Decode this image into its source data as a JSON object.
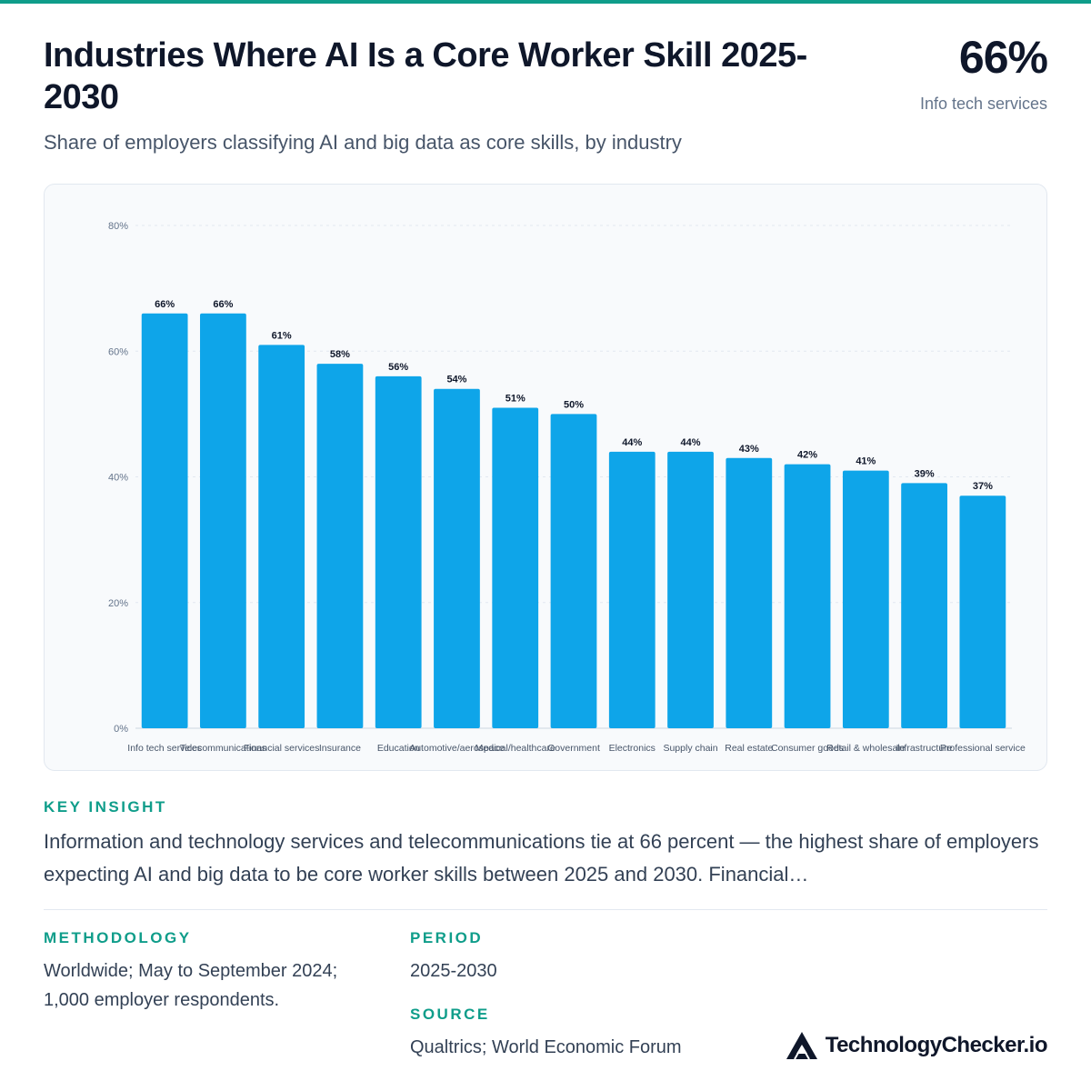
{
  "header": {
    "title": "Industries Where AI Is a Core Worker Skill 2025-2030",
    "subtitle": "Share of employers classifying AI and big data as core skills, by industry",
    "hero_value": "66%",
    "hero_label": "Info tech services"
  },
  "chart_data": {
    "type": "bar",
    "categories": [
      "Info tech services",
      "Telecommunications",
      "Financial services",
      "Insurance",
      "Education",
      "Automotive/aerospace",
      "Medical/healthcare",
      "Government",
      "Electronics",
      "Supply chain",
      "Real estate",
      "Consumer goods",
      "Retail & wholesale",
      "Infrastructure",
      "Professional service"
    ],
    "values": [
      66,
      66,
      61,
      58,
      56,
      54,
      51,
      50,
      44,
      44,
      43,
      42,
      41,
      39,
      37
    ],
    "value_labels": [
      "66%",
      "66%",
      "61%",
      "58%",
      "56%",
      "54%",
      "51%",
      "50%",
      "44%",
      "44%",
      "43%",
      "42%",
      "41%",
      "39%",
      "37%"
    ],
    "ylim": [
      0,
      80
    ],
    "yticks": [
      0,
      20,
      40,
      60,
      80
    ],
    "ytick_labels": [
      "0%",
      "20%",
      "40%",
      "60%",
      "80%"
    ],
    "grid": true,
    "bar_color": "#0ea5e9"
  },
  "insight": {
    "heading": "KEY INSIGHT",
    "text": "Information and technology services and telecommunications tie at 66 percent — the highest share of employers expecting AI and big data to be core worker skills between 2025 and 2030. Financial…"
  },
  "methodology": {
    "heading": "METHODOLOGY",
    "line1": "Worldwide; May to September 2024;",
    "line2": "1,000 employer respondents."
  },
  "period": {
    "heading": "PERIOD",
    "text": "2025-2030"
  },
  "source": {
    "heading": "SOURCE",
    "text": "Qualtrics; World Economic Forum"
  },
  "brand": {
    "name": "TechnologyChecker.io",
    "icon": "triangle-logo-icon"
  },
  "colors": {
    "accent": "#0f9d8a",
    "bar": "#0ea5e9",
    "title": "#0f172a",
    "muted": "#64748b"
  }
}
